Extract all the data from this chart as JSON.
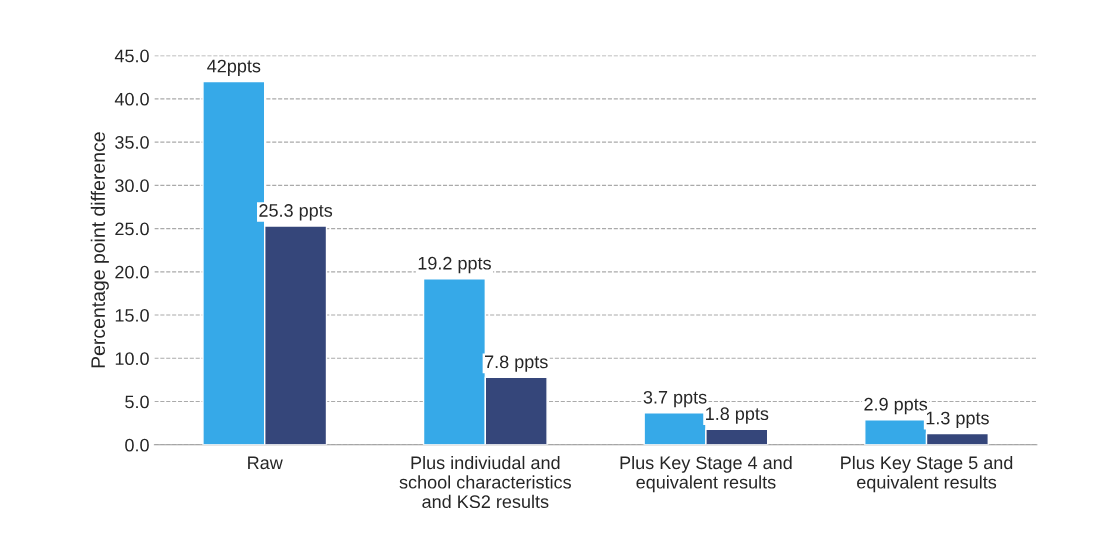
{
  "chart_data": {
    "type": "bar",
    "ylabel": "Percentage point difference",
    "categories": [
      "Raw",
      "Plus indiviudal and\nschool characteristics\nand KS2 results",
      "Plus Key Stage 4 and\nequivalent results",
      "Plus Key Stage 5 and\nequivalent results"
    ],
    "series": [
      {
        "color": "#36a9e8",
        "values": [
          42,
          19.2,
          3.7,
          2.9
        ],
        "value_labels": [
          "42ppts",
          "19.2 ppts",
          "3.7 ppts",
          "2.9 ppts"
        ]
      },
      {
        "color": "#35467a",
        "values": [
          25.3,
          7.8,
          1.8,
          1.3
        ],
        "value_labels": [
          "25.3 ppts",
          "7.8 ppts",
          "1.8 ppts",
          "1.3 ppts"
        ]
      }
    ],
    "ylim": [
      0,
      45
    ],
    "yticks": [
      {
        "value": 0,
        "label": "0.0"
      },
      {
        "value": 5,
        "label": "5.0"
      },
      {
        "value": 10,
        "label": "10.0"
      },
      {
        "value": 15,
        "label": "15.0"
      },
      {
        "value": 20,
        "label": "20.0"
      },
      {
        "value": 25,
        "label": "25.0"
      },
      {
        "value": 30,
        "label": "30.0"
      },
      {
        "value": 35,
        "label": "35.0"
      },
      {
        "value": 40,
        "label": "40.0"
      },
      {
        "value": 45,
        "label": "45.0"
      }
    ],
    "grid": "y",
    "legend": false
  }
}
